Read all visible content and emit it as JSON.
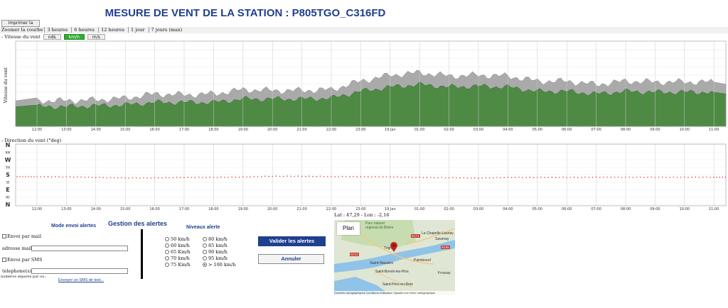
{
  "page_title": "MESURE DE VENT DE LA STATION : P805TGO_C316FD",
  "print_button": "Imprimer la courbe",
  "zoom": {
    "label": "Zoomer la courbe",
    "options": [
      "3 heures",
      "6 heures",
      "12 heures",
      "1 jour",
      "7 jours (max)"
    ]
  },
  "wind_speed": {
    "section_label": "- Vitesse du vent",
    "units": [
      "nds",
      "km/h",
      "m/s"
    ],
    "active_unit": "km/h",
    "ylabel": "Vitesse du vent"
  },
  "wind_direction": {
    "section_label": "- Direction du vent (°deg)",
    "compass": [
      "N",
      "NW",
      "W",
      "SW",
      "S",
      "SE",
      "E",
      "NE",
      "N"
    ]
  },
  "chart_data": [
    {
      "type": "area",
      "title": "",
      "ylabel": "Vitesse du vent",
      "x": [
        "12:00",
        "13:00",
        "14:00",
        "15:00",
        "16:00",
        "17:00",
        "18:00",
        "19:00",
        "20:00",
        "21:00",
        "22:00",
        "23:00",
        "19 Jan",
        "01:00",
        "02:00",
        "03:00",
        "04:00",
        "05:00",
        "06:00",
        "07:00",
        "08:00",
        "09:00",
        "10:00",
        "11:00"
      ],
      "ylim": [
        0,
        100
      ],
      "series": [
        {
          "values": [
            23,
            23,
            24,
            25,
            28,
            28,
            28,
            32,
            32,
            32,
            33,
            41,
            46,
            49,
            46,
            47,
            46,
            41,
            41,
            38,
            41,
            40,
            40,
            40
          ]
        },
        {
          "values": [
            30,
            30,
            31,
            33,
            38,
            37,
            38,
            43,
            42,
            42,
            43,
            53,
            60,
            63,
            59,
            60,
            59,
            53,
            53,
            49,
            53,
            52,
            52,
            52
          ]
        }
      ],
      "colors": {
        "mean": "#4f8a45",
        "gust": "#aaaaaa"
      },
      "grid": true
    },
    {
      "type": "scatter",
      "title": "",
      "x": [
        "12:00",
        "13:00",
        "14:00",
        "15:00",
        "16:00",
        "17:00",
        "18:00",
        "19:00",
        "20:00",
        "21:00",
        "22:00",
        "23:00",
        "19 Jan",
        "01:00",
        "02:00",
        "03:00",
        "04:00",
        "05:00",
        "06:00",
        "07:00",
        "08:00",
        "09:00",
        "10:00",
        "11:00"
      ],
      "y_ticks": [
        "N",
        "NW",
        "W",
        "SW",
        "S",
        "SE",
        "E",
        "NE",
        "N"
      ],
      "ylim": [
        0,
        360
      ],
      "series": [
        {
          "values": [
            193,
            194,
            197,
            200,
            200,
            197,
            197,
            195,
            190,
            190,
            192,
            193,
            194,
            197,
            199,
            201,
            197,
            197,
            197,
            196,
            196,
            196,
            196,
            196
          ]
        }
      ],
      "colors": {
        "points": "#d9413a"
      },
      "grid": true
    }
  ],
  "alerts": {
    "title": "Gestion des alertes",
    "mode_title": "Mode envoi alertes",
    "mail_checkbox": "Envoi par mail",
    "mail_label": "adresse mail :",
    "mail_value": "",
    "sms_checkbox": "Envoi par SMS",
    "phone_label": "telephone(s) :",
    "phone_value": "",
    "phone_hint": "numéros séparés par ou ;",
    "sms_test_link": "Envoyer un SMS de test...",
    "levels_title": "Niveaux alerte",
    "levels": [
      "50 km/h",
      "60 km/h",
      "65 Km/h",
      "70 km/h",
      "75 Km/h",
      "80 km/h",
      "85 km/h",
      "90 km/h",
      "95 km/h",
      "> 100 km/h"
    ],
    "selected_level": "> 100 km/h",
    "validate_button": "Valider les alertes",
    "cancel_button": "Annuler"
  },
  "map": {
    "coords": "Lat : 47,29 - Lon : -2,16",
    "plan_button": "Plan",
    "labels": [
      "Parc naturel régional de Brière",
      "La Chapelle-Launay",
      "Savenay",
      "Saint-Nazaire",
      "Saint-Brevin-les-Pins",
      "Paimboeuf",
      "Frossay",
      "Saint-Père-en-Retz",
      "Trignac"
    ],
    "road_badges": [
      "N171",
      "D213",
      "N165"
    ],
    "footer": [
      "Données cartographiques",
      "Conditions d'utilisation",
      "Signaler une erreur cartographique"
    ]
  }
}
